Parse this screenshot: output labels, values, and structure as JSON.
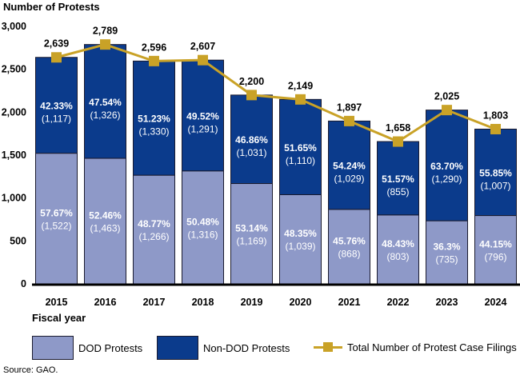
{
  "ylabel": "Number of Protests",
  "xlabel": "Fiscal year",
  "source": "Source: GAO.",
  "legend": {
    "dod": "DOD Protests",
    "nondod": "Non-DOD Protests",
    "total": "Total Number of Protest Case Filings"
  },
  "colors": {
    "dod": "#8e99c8",
    "nondod": "#0b3b8c",
    "total": "#c9a227",
    "bar_border": "#1a1a2e"
  },
  "chart_data": {
    "type": "bar",
    "stacked": true,
    "categories": [
      "2015",
      "2016",
      "2017",
      "2018",
      "2019",
      "2020",
      "2021",
      "2022",
      "2023",
      "2024"
    ],
    "ylim": [
      0,
      3000
    ],
    "yticks": [
      "0",
      "500",
      "1,000",
      "1,500",
      "2,000",
      "2,500",
      "3,000"
    ],
    "ytick_values": [
      0,
      500,
      1000,
      1500,
      2000,
      2500,
      3000
    ],
    "series": [
      {
        "name": "DOD Protests",
        "values": [
          1522,
          1463,
          1266,
          1316,
          1169,
          1039,
          868,
          803,
          735,
          796
        ],
        "pct_labels": [
          "57.67%",
          "52.46%",
          "48.77%",
          "50.48%",
          "53.14%",
          "48.35%",
          "45.76%",
          "48.43%",
          "36.3%",
          "44.15%"
        ],
        "count_labels": [
          "(1,522)",
          "(1,463)",
          "(1,266)",
          "(1,316)",
          "(1,169)",
          "(1,039)",
          "(868)",
          "(803)",
          "(735)",
          "(796)"
        ]
      },
      {
        "name": "Non-DOD Protests",
        "values": [
          1117,
          1326,
          1330,
          1291,
          1031,
          1110,
          1029,
          855,
          1290,
          1007
        ],
        "pct_labels": [
          "42.33%",
          "47.54%",
          "51.23%",
          "49.52%",
          "46.86%",
          "51.65%",
          "54.24%",
          "51.57%",
          "63.70%",
          "55.85%"
        ],
        "count_labels": [
          "(1,117)",
          "(1,326)",
          "(1,330)",
          "(1,291)",
          "(1,031)",
          "(1,110)",
          "(1,029)",
          "(855)",
          "(1,290)",
          "(1,007)"
        ]
      }
    ],
    "line": {
      "name": "Total Number of Protest Case Filings",
      "values": [
        2639,
        2789,
        2596,
        2607,
        2200,
        2149,
        1897,
        1658,
        2025,
        1803
      ],
      "labels": [
        "2,639",
        "2,789",
        "2,596",
        "2,607",
        "2,200",
        "2,149",
        "1,897",
        "1,658",
        "2,025",
        "1,803"
      ]
    }
  }
}
